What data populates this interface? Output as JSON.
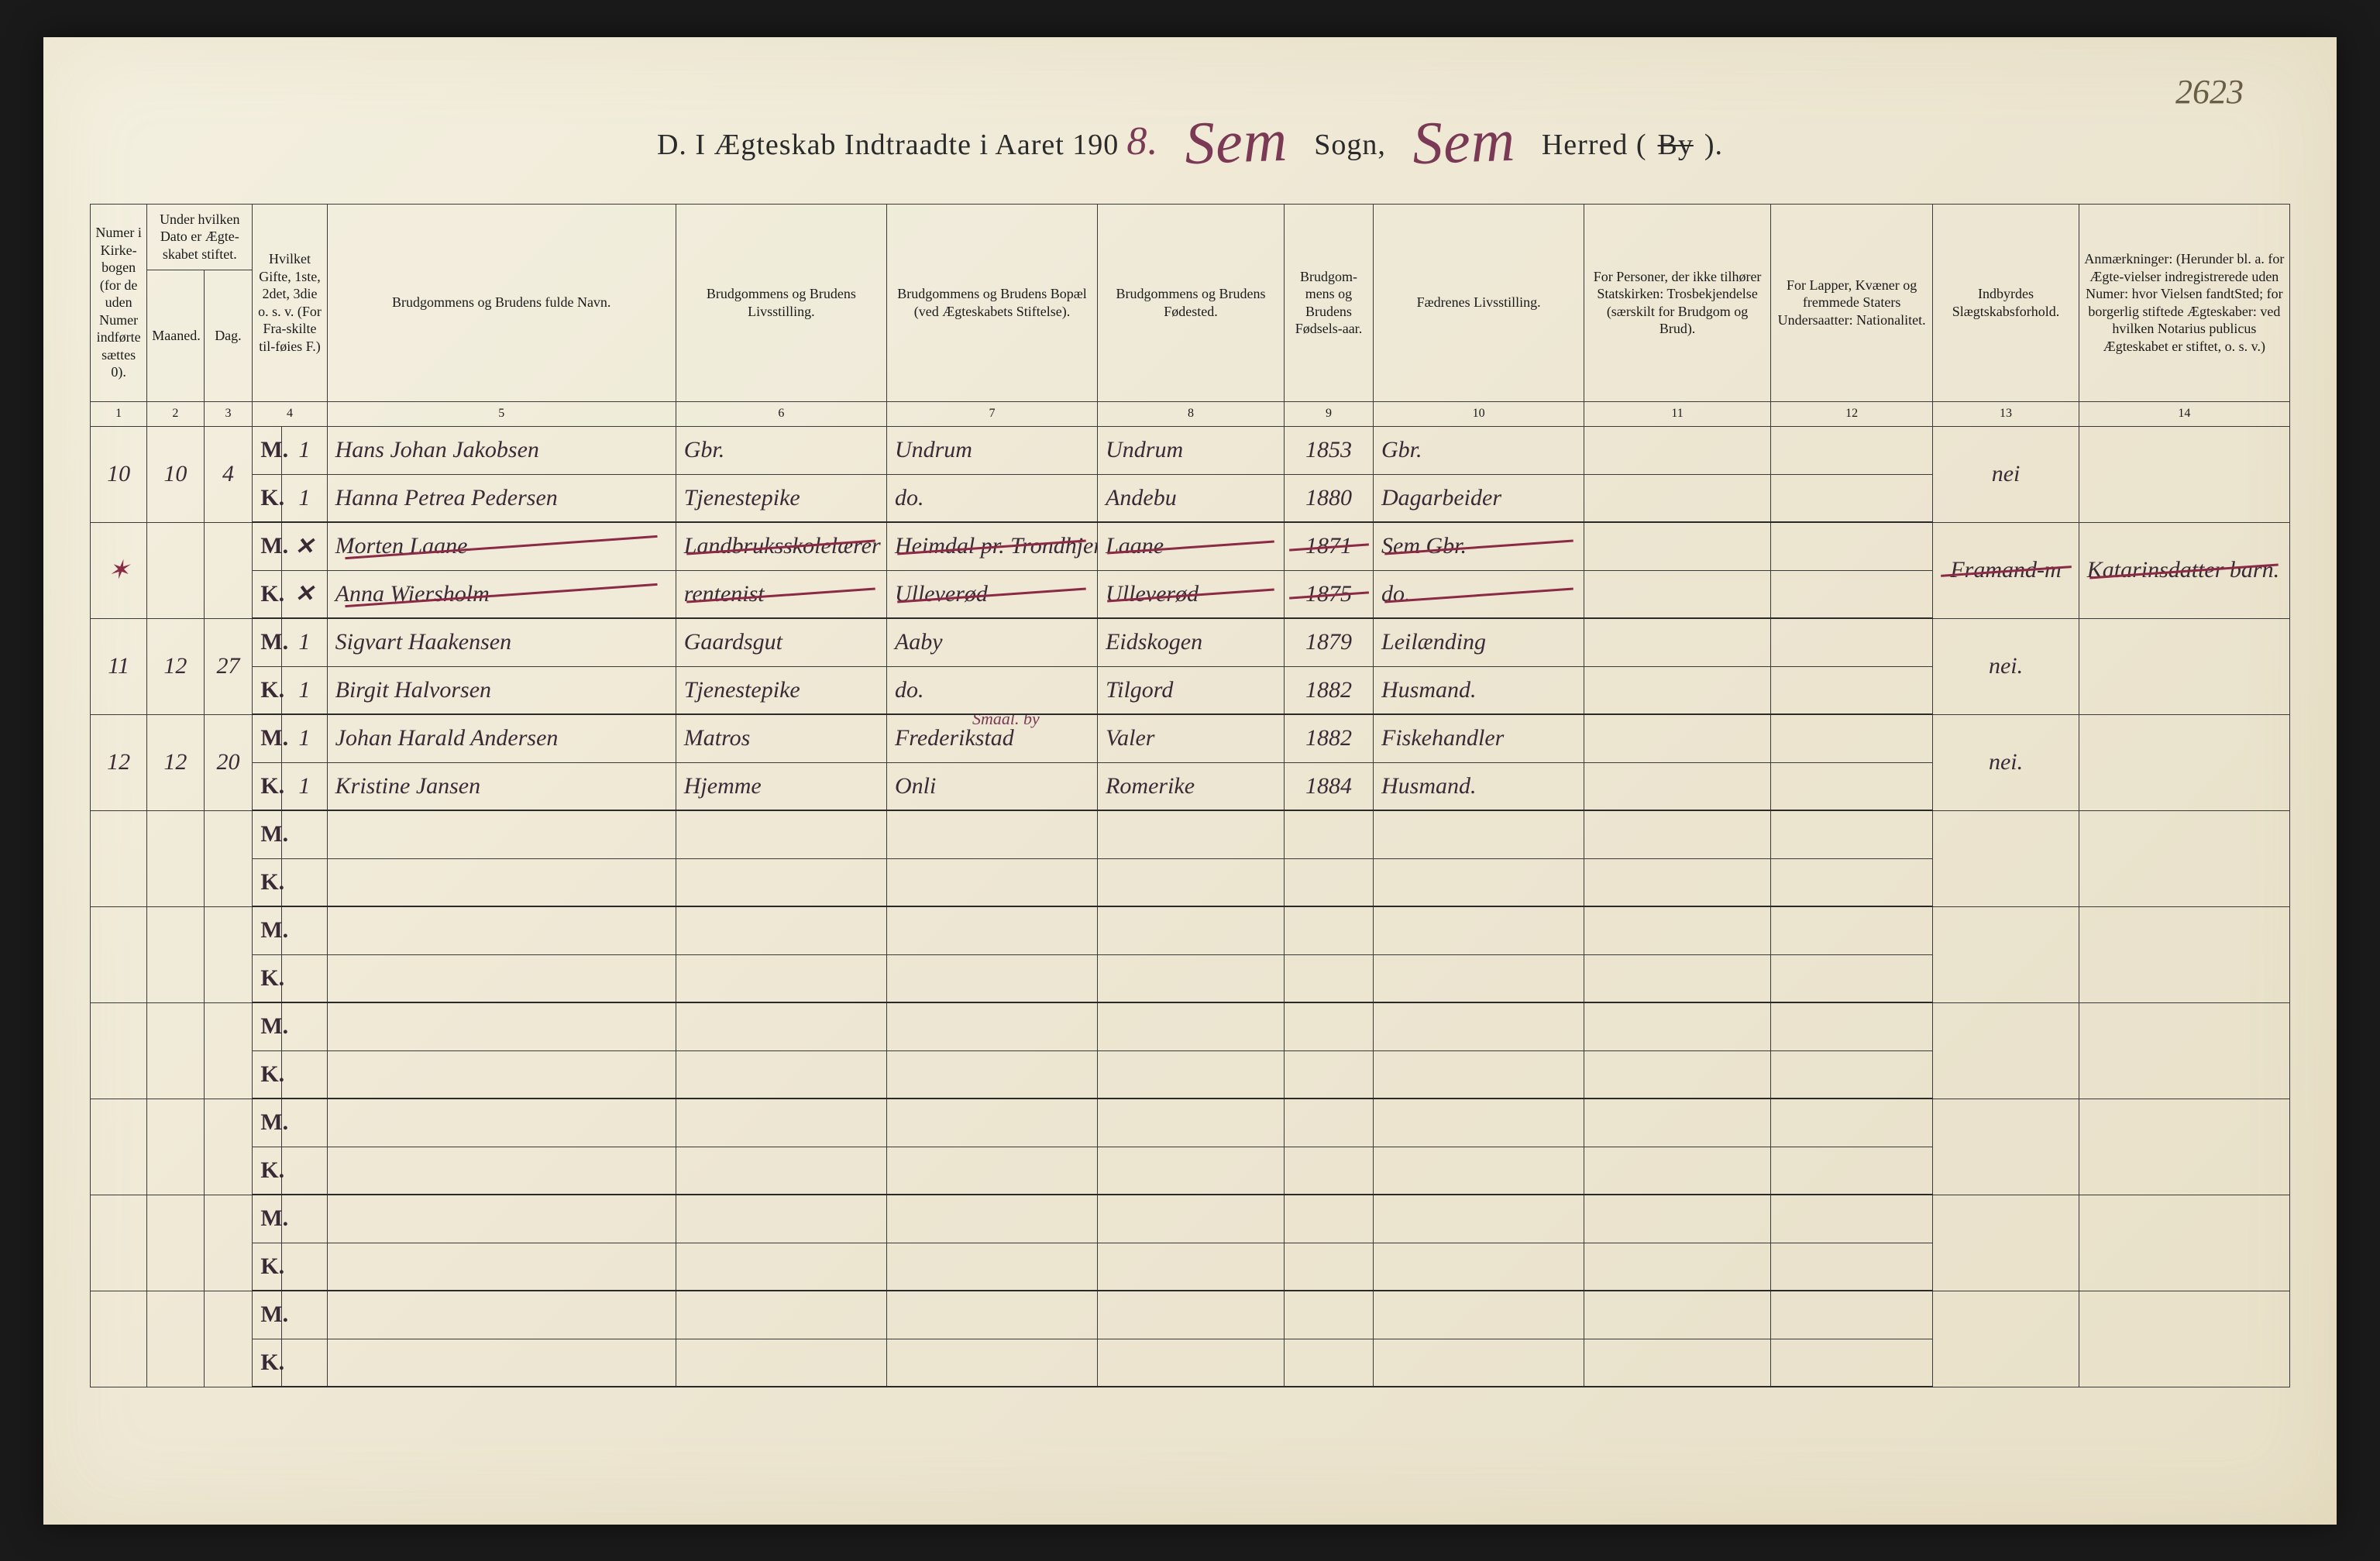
{
  "page_number_handwritten": "2623",
  "title": {
    "prefix": "D.  I Ægteskab Indtraadte i Aaret 190",
    "year_suffix": "8.",
    "parish_fill": "Sem",
    "label_sogn": "Sogn,",
    "district_fill": "Sem",
    "label_herred": "Herred (",
    "by_struck": "By",
    "close": ")."
  },
  "columns": {
    "c1": "Numer i Kirke-bogen (for de uden Numer indførte sættes 0).",
    "c2_top": "Under hvilken Dato er Ægte-skabet stiftet.",
    "c2a": "Maaned.",
    "c2b": "Dag.",
    "c4": "Hvilket Gifte, 1ste, 2det, 3die o. s. v. (For Fra-skilte til-føies F.)",
    "c5": "Brudgommens og Brudens fulde Navn.",
    "c6": "Brudgommens og Brudens Livsstilling.",
    "c7": "Brudgommens og Brudens Bopæl (ved Ægteskabets Stiftelse).",
    "c8": "Brudgommens og Brudens Fødested.",
    "c9": "Brudgom-mens og Brudens Fødsels-aar.",
    "c10": "Fædrenes Livsstilling.",
    "c11": "For Personer, der ikke tilhører Statskirken: Trosbekjendelse (særskilt for Brudgom og Brud).",
    "c12": "For Lapper, Kvæner og fremmede Staters Undersaatter: Nationalitet.",
    "c13": "Indbyrdes Slægtskabsforhold.",
    "c14": "Anmærkninger: (Herunder bl. a. for Ægte-vielser indregistrerede uden Numer: hvor Vielsen fandtSted; for borgerlig stiftede Ægteskaber: ved hvilken Notarius publicus Ægteskabet er stiftet, o. s. v.)"
  },
  "colnums": [
    "1",
    "2",
    "3",
    "4",
    "5",
    "6",
    "7",
    "8",
    "9",
    "10",
    "11",
    "12",
    "13",
    "14"
  ],
  "mk": {
    "m": "M.",
    "k": "K."
  },
  "entries": [
    {
      "num": "10",
      "month": "10",
      "day": "4",
      "groom": {
        "gifte": "1",
        "name": "Hans Johan Jakobsen",
        "occ": "Gbr.",
        "res": "Undrum",
        "birthplace": "Undrum",
        "year": "1853",
        "father": "Gbr."
      },
      "bride": {
        "gifte": "1",
        "name": "Hanna Petrea Pedersen",
        "occ": "Tjenestepike",
        "res": "do.",
        "birthplace": "Andebu",
        "year": "1880",
        "father": "Dagarbeider"
      },
      "c13": "nei",
      "struck": false
    },
    {
      "num": "",
      "month": "",
      "day": "",
      "side_mark": "✶",
      "groom": {
        "gifte": "✕",
        "name": "Morten Laane",
        "occ": "Landbruksskolelærer",
        "res": "Heimdal pr. Trondhjem",
        "birthplace": "Laane",
        "year": "1871",
        "father": "Sem Gbr."
      },
      "bride": {
        "gifte": "✕",
        "name": "Anna Wiersholm",
        "occ": "rentenist",
        "res": "Ulleverød",
        "birthplace": "Ulleverød",
        "year": "1875",
        "father": "do."
      },
      "c13": "Framand-m",
      "c14": "Katarinsdatter barn.",
      "struck": true
    },
    {
      "num": "11",
      "month": "12",
      "day": "27",
      "groom": {
        "gifte": "1",
        "name": "Sigvart Haakensen",
        "occ": "Gaardsgut",
        "res": "Aaby",
        "birthplace": "Eidskogen",
        "year": "1879",
        "father": "Leilænding"
      },
      "bride": {
        "gifte": "1",
        "name": "Birgit Halvorsen",
        "occ": "Tjenestepike",
        "res": "do.",
        "birthplace": "Tilgord",
        "year": "1882",
        "father": "Husmand."
      },
      "c13": "nei.",
      "struck": false
    },
    {
      "num": "12",
      "month": "12",
      "day": "20",
      "groom": {
        "gifte": "1",
        "name": "Johan Harald Andersen",
        "occ": "Matros",
        "res": "Frederikstad",
        "res_note": "Smaal. by",
        "birthplace": "Valer",
        "year": "1882",
        "father": "Fiskehandler"
      },
      "bride": {
        "gifte": "1",
        "name": "Kristine Jansen",
        "occ": "Hjemme",
        "res": "Onli",
        "birthplace": "Romerike",
        "year": "1884",
        "father": "Husmand."
      },
      "c13": "nei.",
      "struck": false
    }
  ],
  "empty_pair_count": 6,
  "colors": {
    "paper": "#ede6d2",
    "ink_print": "#1a1a1a",
    "ink_hand": "#4a3540",
    "ink_red": "#8a2a45",
    "border": "#3a3a3a"
  }
}
